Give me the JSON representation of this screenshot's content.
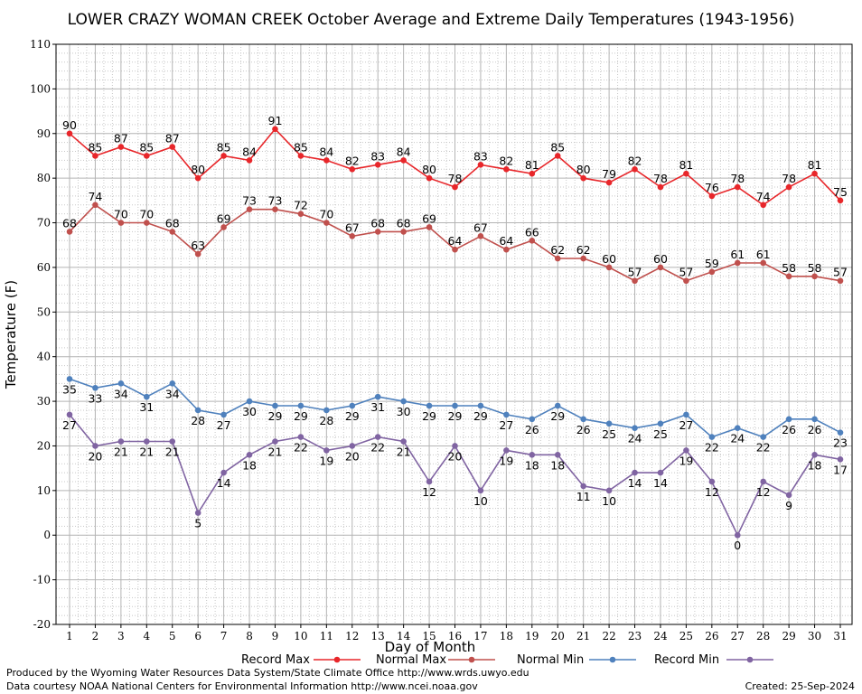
{
  "chart_data": {
    "type": "line",
    "title": "LOWER CRAZY WOMAN CREEK October Average and Extreme Daily Temperatures (1943-1956)",
    "xlabel": "Day of Month",
    "ylabel": "Temperature (F)",
    "ylim": [
      -20,
      110
    ],
    "yticks": [
      "-20",
      "-10",
      "0",
      "10",
      "20",
      "30",
      "40",
      "50",
      "60",
      "70",
      "80",
      "90",
      "100",
      "110"
    ],
    "x": [
      "1",
      "2",
      "3",
      "4",
      "5",
      "6",
      "7",
      "8",
      "9",
      "10",
      "11",
      "12",
      "13",
      "14",
      "15",
      "16",
      "17",
      "18",
      "19",
      "20",
      "21",
      "22",
      "23",
      "24",
      "25",
      "26",
      "27",
      "28",
      "29",
      "30",
      "31"
    ],
    "grid": true,
    "legend_position": "bottom",
    "series": [
      {
        "name": "Record Max",
        "color": "#e8262a",
        "label_pos": "above",
        "values": [
          90,
          85,
          87,
          85,
          87,
          80,
          85,
          84,
          91,
          85,
          84,
          82,
          83,
          84,
          80,
          78,
          83,
          82,
          81,
          85,
          80,
          79,
          82,
          78,
          81,
          76,
          78,
          74,
          78,
          81,
          75
        ]
      },
      {
        "name": "Normal Max",
        "color": "#c0504d",
        "label_pos": "above",
        "values": [
          68,
          74,
          70,
          70,
          68,
          63,
          69,
          73,
          73,
          72,
          70,
          67,
          68,
          68,
          69,
          64,
          67,
          64,
          66,
          62,
          62,
          60,
          57,
          60,
          57,
          59,
          61,
          61,
          58,
          58,
          57
        ]
      },
      {
        "name": "Normal Min",
        "color": "#4f81bd",
        "label_pos": "below",
        "values": [
          35,
          33,
          34,
          31,
          34,
          28,
          27,
          30,
          29,
          29,
          28,
          29,
          31,
          30,
          29,
          29,
          29,
          27,
          26,
          29,
          26,
          25,
          24,
          25,
          27,
          22,
          24,
          22,
          26,
          26,
          23
        ]
      },
      {
        "name": "Record Min",
        "color": "#8064a2",
        "label_pos": "below",
        "values": [
          27,
          20,
          21,
          21,
          21,
          5,
          14,
          18,
          21,
          22,
          19,
          20,
          22,
          21,
          12,
          20,
          10,
          19,
          18,
          18,
          11,
          10,
          14,
          14,
          19,
          12,
          0,
          12,
          9,
          18,
          17
        ]
      }
    ]
  },
  "footer": {
    "produced_by": "Produced by the Wyoming Water Resources Data System/State Climate Office http://www.wrds.uwyo.edu",
    "courtesy": "Data courtesy NOAA National Centers for Environmental Information http://www.ncei.noaa.gov",
    "created": "Created:  25-Sep-2024"
  }
}
